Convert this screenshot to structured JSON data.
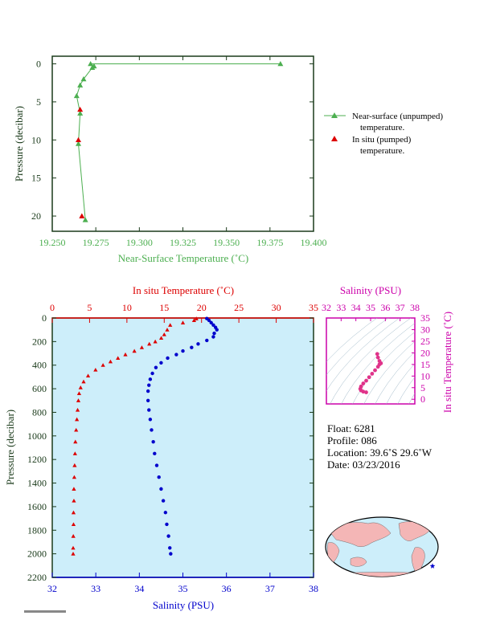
{
  "colors": {
    "green": "#4caf50",
    "red": "#dd0000",
    "blue": "#0000cc",
    "magenta": "#cc00aa",
    "axis_dark": "#1a3a1a",
    "panel_bg": "#cdeefa",
    "land": "#f4b6b6",
    "ocean": "#cdeefa"
  },
  "chart_data": [
    {
      "type": "line",
      "xlabel": "Near-Surface Temperature (˚C)",
      "ylabel": "Pressure (decibar)",
      "xlim": [
        19.25,
        19.4
      ],
      "ylim": [
        22,
        -1
      ],
      "x_ticks": [
        "19.250",
        "19.275",
        "19.300",
        "19.325",
        "19.350",
        "19.375",
        "19.400"
      ],
      "y_ticks": [
        "0",
        "5",
        "10",
        "15",
        "20"
      ],
      "series": [
        {
          "name": "Near-surface (unpumped) temperature.",
          "marker": "triangle",
          "color": "green",
          "points": [
            [
              19.381,
              0.0
            ],
            [
              19.272,
              0.0
            ],
            [
              19.274,
              0.3
            ],
            [
              19.273,
              0.5
            ],
            [
              19.268,
              2.0
            ],
            [
              19.266,
              2.8
            ],
            [
              19.264,
              4.2
            ],
            [
              19.266,
              6.5
            ],
            [
              19.265,
              10.5
            ],
            [
              19.269,
              20.5
            ]
          ]
        },
        {
          "name": "In situ (pumped) temperature.",
          "marker": "triangle",
          "color": "red",
          "points": [
            [
              19.266,
              6.0
            ],
            [
              19.265,
              10.0
            ],
            [
              19.267,
              20.0
            ]
          ]
        }
      ],
      "legend": {
        "placement": "right",
        "entries": [
          "Near-surface (unpumped)",
          "temperature.",
          "In situ (pumped)",
          "temperature."
        ]
      }
    },
    {
      "type": "scatter",
      "x_bottom_label": "Salinity (PSU)",
      "x_top_label": "In situ Temperature (˚C)",
      "ylabel": "Pressure (decibar)",
      "salinity_lim": [
        32,
        38
      ],
      "temperature_lim": [
        0,
        35
      ],
      "pressure_lim": [
        2200,
        0
      ],
      "salinity_ticks": [
        "32",
        "33",
        "34",
        "35",
        "36",
        "37",
        "38"
      ],
      "temperature_ticks": [
        "0",
        "5",
        "10",
        "15",
        "20",
        "25",
        "30",
        "35"
      ],
      "pressure_ticks": [
        "0",
        "200",
        "400",
        "600",
        "800",
        "1000",
        "1200",
        "1400",
        "1600",
        "1800",
        "2000",
        "2200"
      ],
      "temperature_profile": [
        [
          19.3,
          5
        ],
        [
          19.0,
          20
        ],
        [
          17.5,
          40
        ],
        [
          15.8,
          60
        ],
        [
          15.4,
          100
        ],
        [
          15.0,
          140
        ],
        [
          14.6,
          170
        ],
        [
          13.8,
          200
        ],
        [
          13.0,
          220
        ],
        [
          12.0,
          250
        ],
        [
          11.0,
          280
        ],
        [
          9.8,
          310
        ],
        [
          8.8,
          340
        ],
        [
          7.8,
          370
        ],
        [
          6.8,
          400
        ],
        [
          5.8,
          440
        ],
        [
          4.8,
          490
        ],
        [
          4.2,
          540
        ],
        [
          3.8,
          590
        ],
        [
          3.6,
          640
        ],
        [
          3.5,
          700
        ],
        [
          3.4,
          780
        ],
        [
          3.3,
          860
        ],
        [
          3.2,
          950
        ],
        [
          3.1,
          1050
        ],
        [
          3.05,
          1150
        ],
        [
          3.0,
          1250
        ],
        [
          2.95,
          1350
        ],
        [
          2.9,
          1450
        ],
        [
          2.9,
          1550
        ],
        [
          2.85,
          1650
        ],
        [
          2.85,
          1750
        ],
        [
          2.82,
          1850
        ],
        [
          2.8,
          1950
        ],
        [
          2.8,
          2000
        ]
      ],
      "salinity_profile": [
        [
          35.55,
          5
        ],
        [
          35.6,
          20
        ],
        [
          35.65,
          40
        ],
        [
          35.7,
          60
        ],
        [
          35.75,
          80
        ],
        [
          35.78,
          100
        ],
        [
          35.72,
          130
        ],
        [
          35.7,
          160
        ],
        [
          35.55,
          190
        ],
        [
          35.35,
          220
        ],
        [
          35.2,
          250
        ],
        [
          35.0,
          280
        ],
        [
          34.85,
          310
        ],
        [
          34.65,
          340
        ],
        [
          34.5,
          380
        ],
        [
          34.38,
          420
        ],
        [
          34.3,
          470
        ],
        [
          34.25,
          520
        ],
        [
          34.22,
          570
        ],
        [
          34.2,
          620
        ],
        [
          34.2,
          700
        ],
        [
          34.22,
          780
        ],
        [
          34.25,
          860
        ],
        [
          34.28,
          950
        ],
        [
          34.32,
          1050
        ],
        [
          34.35,
          1150
        ],
        [
          34.4,
          1250
        ],
        [
          34.45,
          1350
        ],
        [
          34.5,
          1450
        ],
        [
          34.55,
          1550
        ],
        [
          34.6,
          1650
        ],
        [
          34.63,
          1750
        ],
        [
          34.67,
          1850
        ],
        [
          34.7,
          1950
        ],
        [
          34.72,
          2000
        ]
      ]
    },
    {
      "type": "scatter",
      "title": "Salinity (PSU)",
      "ylabel": "In situ Temperature (˚C)",
      "salinity_lim": [
        32,
        38
      ],
      "temperature_lim": [
        -2,
        35
      ],
      "x_ticks": [
        "32",
        "33",
        "34",
        "35",
        "36",
        "37",
        "38"
      ],
      "y_ticks": [
        "0",
        "5",
        "10",
        "15",
        "20",
        "25",
        "30",
        "35"
      ],
      "ts_points": [
        [
          34.7,
          3.0
        ],
        [
          34.5,
          3.3
        ],
        [
          34.35,
          3.8
        ],
        [
          34.3,
          4.5
        ],
        [
          34.35,
          5.5
        ],
        [
          34.5,
          6.8
        ],
        [
          34.7,
          8.0
        ],
        [
          34.9,
          9.5
        ],
        [
          35.1,
          11.0
        ],
        [
          35.3,
          12.5
        ],
        [
          35.5,
          14.0
        ],
        [
          35.6,
          15.0
        ],
        [
          35.7,
          15.5
        ],
        [
          35.6,
          16.5
        ],
        [
          35.5,
          18.0
        ],
        [
          35.45,
          19.5
        ]
      ]
    }
  ],
  "float_info": {
    "float": "Float:  6281",
    "profile": "Profile:  086",
    "location": "Location:  39.6˚S  29.6˚W",
    "date": "Date:  03/23/2016"
  },
  "map": {
    "marker_icon": "star-icon",
    "marker_color": "blue"
  }
}
